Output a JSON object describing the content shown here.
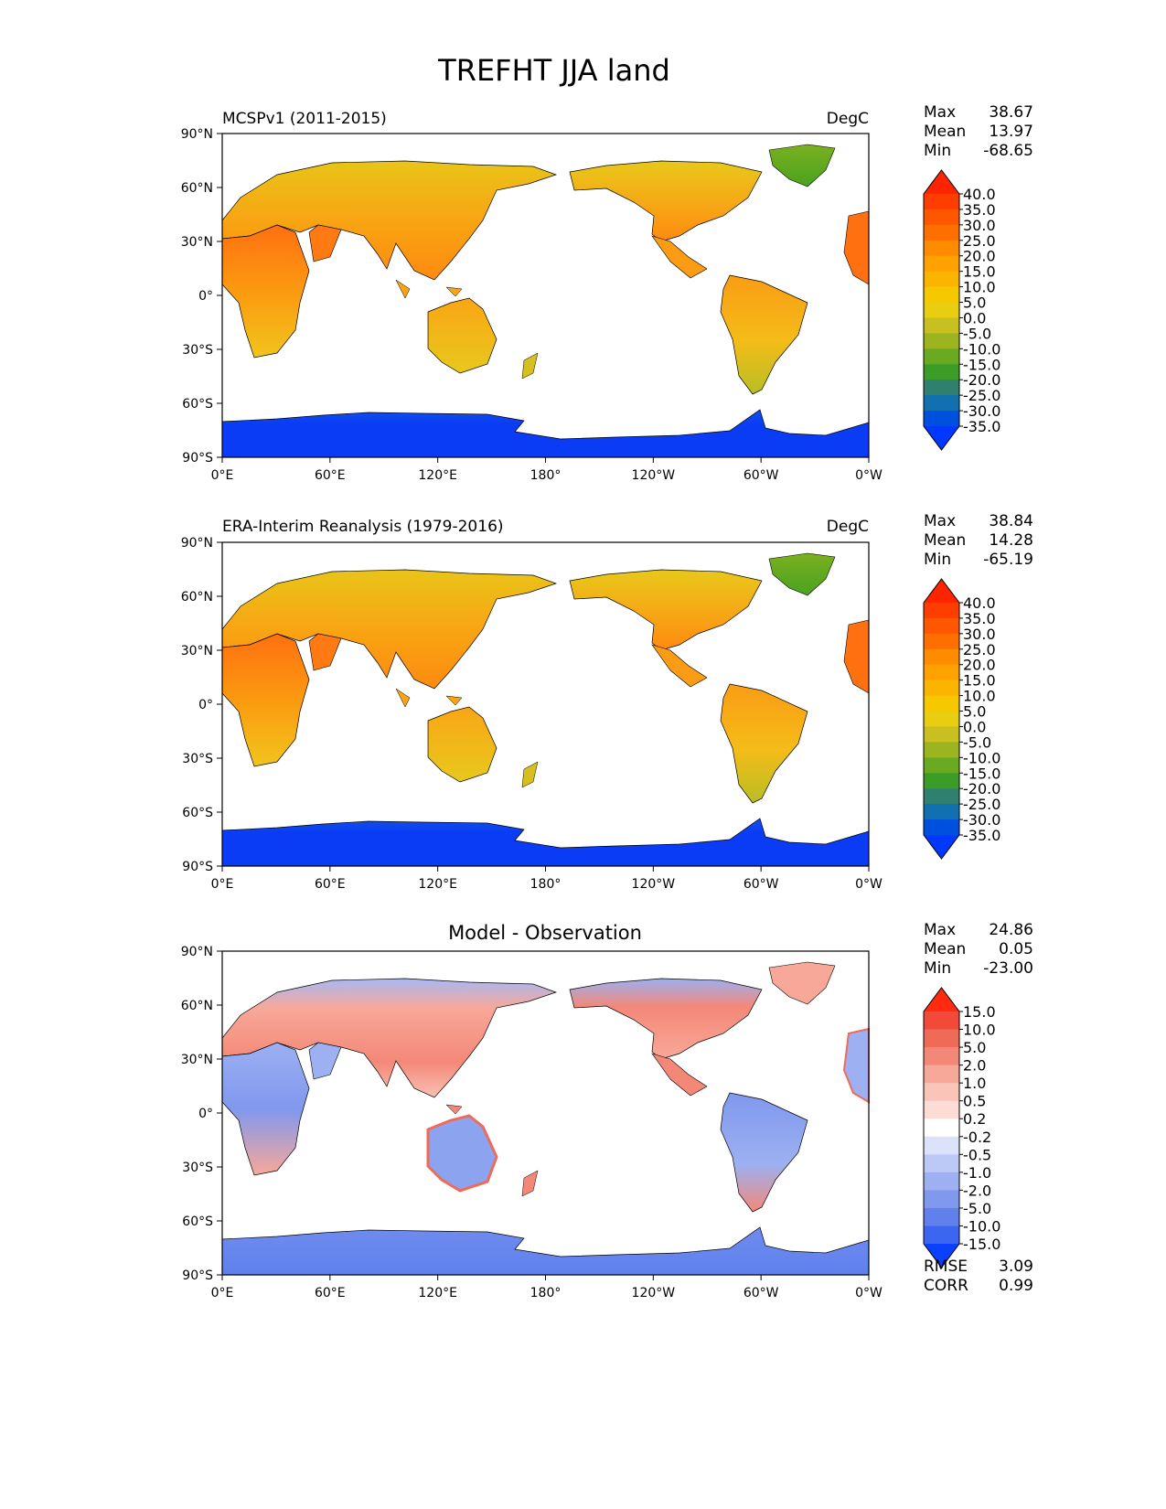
{
  "title": "TREFHT JJA land",
  "lat_ticks": [
    "90°N",
    "60°N",
    "30°N",
    "0°",
    "30°S",
    "60°S",
    "90°S"
  ],
  "lon_ticks": [
    "0°E",
    "60°E",
    "120°E",
    "180°",
    "120°W",
    "60°W",
    "0°W"
  ],
  "panels": [
    {
      "left_title": "MCSPv1 (2011-2015)",
      "center_title": "",
      "units": "DegC",
      "stats": [
        {
          "label": "Max",
          "value": "38.67"
        },
        {
          "label": "Mean",
          "value": "13.97"
        },
        {
          "label": "Min",
          "value": "-68.65"
        }
      ],
      "colorbar_ref": "absolute"
    },
    {
      "left_title": "ERA-Interim Reanalysis (1979-2016)",
      "center_title": "",
      "units": "DegC",
      "stats": [
        {
          "label": "Max",
          "value": "38.84"
        },
        {
          "label": "Mean",
          "value": "14.28"
        },
        {
          "label": "Min",
          "value": "-65.19"
        }
      ],
      "colorbar_ref": "absolute"
    },
    {
      "left_title": "",
      "center_title": "Model - Observation",
      "units": "",
      "stats": [
        {
          "label": "Max",
          "value": "24.86"
        },
        {
          "label": "Mean",
          "value": "0.05"
        },
        {
          "label": "Min",
          "value": "-23.00"
        }
      ],
      "extra_stats": [
        {
          "label": "RMSE",
          "value": "3.09"
        },
        {
          "label": "CORR",
          "value": "0.99"
        }
      ],
      "colorbar_ref": "difference"
    }
  ],
  "colorbars": {
    "absolute": {
      "labels": [
        "40.0",
        "35.0",
        "30.0",
        "25.0",
        "20.0",
        "15.0",
        "10.0",
        "5.0",
        "0.0",
        "-5.0",
        "-10.0",
        "-15.0",
        "-20.0",
        "-25.0",
        "-30.0",
        "-35.0"
      ],
      "colors": [
        "#ff2400",
        "#ff3d00",
        "#ff5600",
        "#ff6f00",
        "#ff8c00",
        "#ffa200",
        "#fbb400",
        "#f6c800",
        "#e8cd10",
        "#c8c020",
        "#9cb420",
        "#6aaa20",
        "#3c9c28",
        "#308070",
        "#1070b0",
        "#0050e0",
        "#0038ff"
      ]
    },
    "difference": {
      "labels": [
        "15.0",
        "10.0",
        "5.0",
        "2.0",
        "1.0",
        "0.5",
        "0.2",
        "-0.2",
        "-0.5",
        "-1.0",
        "-2.0",
        "-5.0",
        "-10.0",
        "-15.0"
      ],
      "colors": [
        "#ff2a10",
        "#f24a38",
        "#f06a58",
        "#f48878",
        "#f8a898",
        "#fac4b8",
        "#fcdcd4",
        "#ffffff",
        "#dde2fb",
        "#bcc8f6",
        "#9cb0f2",
        "#8098ee",
        "#6080ec",
        "#3c66f0",
        "#0a40ff"
      ]
    }
  },
  "legend_colors": {
    "land_abs_warm": "#f5a623",
    "land_abs_hot": "#ff6a10",
    "antarctica": "#0a3cf0",
    "diff_positive": "#f89080",
    "diff_negative": "#7898f0"
  }
}
